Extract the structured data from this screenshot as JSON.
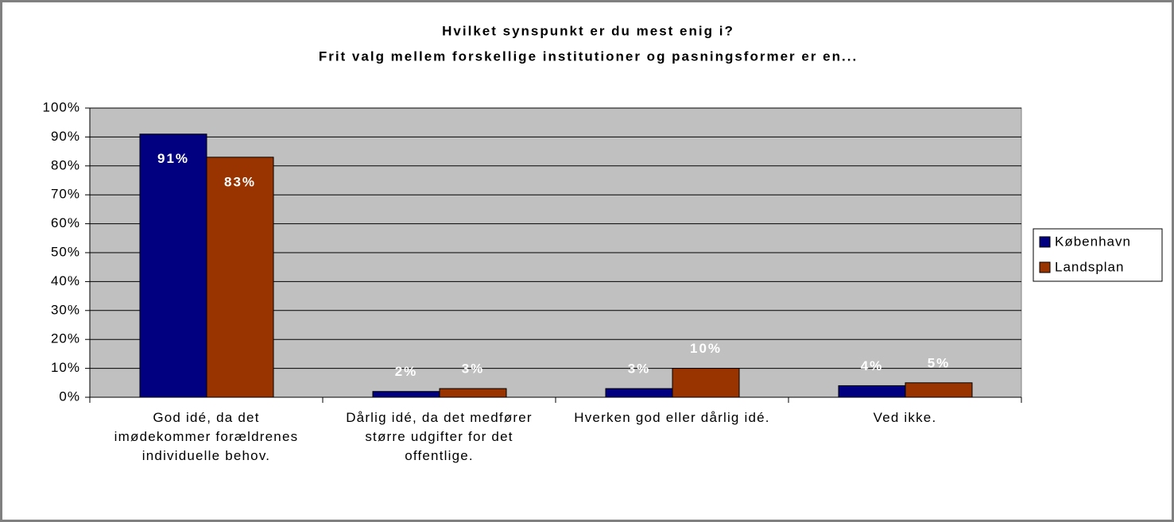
{
  "chart_data": {
    "type": "bar",
    "title": "Hvilket synspunkt er du mest enig i?",
    "subtitle": "Frit valg mellem forskellige institutioner og pasningsformer er en...",
    "categories": [
      "God idé, da det imødekommer forældrenes individuelle behov.",
      "Dårlig idé, da det medfører større udgifter for det offentlige.",
      "Hverken god eller dårlig idé.",
      "Ved ikke."
    ],
    "series": [
      {
        "name": "København",
        "color": "#000080",
        "values": [
          91,
          2,
          3,
          4
        ],
        "value_labels": [
          "91%",
          "2%",
          "3%",
          "4%"
        ]
      },
      {
        "name": "Landsplan",
        "color": "#993300",
        "values": [
          83,
          3,
          10,
          5
        ],
        "value_labels": [
          "83%",
          "3%",
          "10%",
          "5%"
        ]
      }
    ],
    "ylim": [
      0,
      100
    ],
    "yticks": [
      {
        "value": 0,
        "label": "0%"
      },
      {
        "value": 10,
        "label": "10%"
      },
      {
        "value": 20,
        "label": "20%"
      },
      {
        "value": 30,
        "label": "30%"
      },
      {
        "value": 40,
        "label": "40%"
      },
      {
        "value": 50,
        "label": "50%"
      },
      {
        "value": 60,
        "label": "60%"
      },
      {
        "value": 70,
        "label": "70%"
      },
      {
        "value": 80,
        "label": "80%"
      },
      {
        "value": 90,
        "label": "90%"
      },
      {
        "value": 100,
        "label": "100%"
      }
    ],
    "grid": true,
    "legend": "right"
  }
}
